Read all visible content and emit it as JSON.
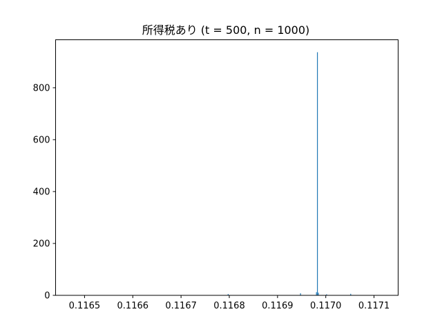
{
  "chart_data": {
    "type": "bar",
    "title": "所得税あり (t = 500, n = 1000)",
    "xlabel": "",
    "ylabel": "",
    "xlim": [
      0.11644,
      0.11715
    ],
    "ylim": [
      0,
      985
    ],
    "x_ticks": [
      "0.1165",
      "0.1166",
      "0.1167",
      "0.1168",
      "0.1169",
      "0.1170",
      "0.1171"
    ],
    "x_tick_values": [
      0.1165,
      0.1166,
      0.1167,
      0.1168,
      0.1169,
      0.117,
      0.1171
    ],
    "y_ticks": [
      "0",
      "200",
      "400",
      "600",
      "800"
    ],
    "y_tick_values": [
      0,
      200,
      400,
      600,
      800
    ],
    "bin_width": 1.4e-06,
    "bars": [
      {
        "x": 0.1164598,
        "count": 1
      },
      {
        "x": 0.1167968,
        "count": 5
      },
      {
        "x": 0.1169468,
        "count": 8
      },
      {
        "x": 0.1169798,
        "count": 12
      },
      {
        "x": 0.1169818,
        "count": 937
      },
      {
        "x": 0.1169838,
        "count": 10
      },
      {
        "x": 0.1170008,
        "count": 4
      },
      {
        "x": 0.1170508,
        "count": 6
      },
      {
        "x": 0.1171208,
        "count": 1
      }
    ],
    "grid": false,
    "legend": "none",
    "bar_color": "#1f77b4"
  }
}
